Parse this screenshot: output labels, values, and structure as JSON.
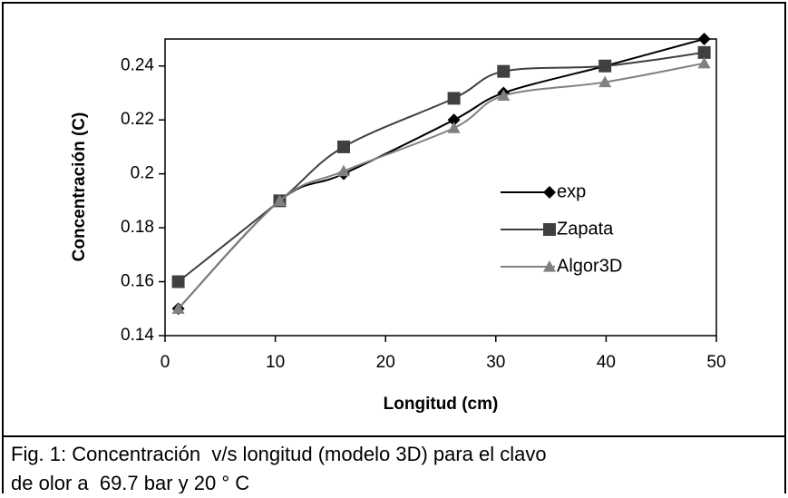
{
  "chart_data": {
    "type": "line",
    "x_label": "Longitud (cm)",
    "y_label": "Concentración (C)",
    "caption": [
      "Fig. 1: Concentración  v/s longitud (modelo 3D) para el clavo",
      "de olor a  69.7 bar y 20 ° C"
    ],
    "x": [
      1.2,
      10.4,
      16.2,
      26.2,
      30.7,
      39.9,
      48.9
    ],
    "series": [
      {
        "name": "exp",
        "color": "#000000",
        "marker": "diamond",
        "values": [
          0.15,
          0.19,
          0.2,
          0.22,
          0.23,
          0.24,
          0.25
        ]
      },
      {
        "name": "Zapata",
        "color": "#404040",
        "marker": "square",
        "values": [
          0.16,
          0.19,
          0.21,
          0.228,
          0.238,
          0.24,
          0.245
        ]
      },
      {
        "name": "Algor3D",
        "color": "#808080",
        "marker": "triangle",
        "values": [
          0.15,
          0.19,
          0.201,
          0.217,
          0.229,
          0.234,
          0.241
        ]
      }
    ],
    "xlim": [
      0,
      50
    ],
    "xticks": [
      0,
      10,
      20,
      30,
      40,
      50
    ],
    "ylim": [
      0.14,
      0.25
    ],
    "yticks": [
      0.14,
      0.16,
      0.18,
      0.2,
      0.22,
      0.24
    ],
    "grid": false,
    "legend": "right"
  }
}
